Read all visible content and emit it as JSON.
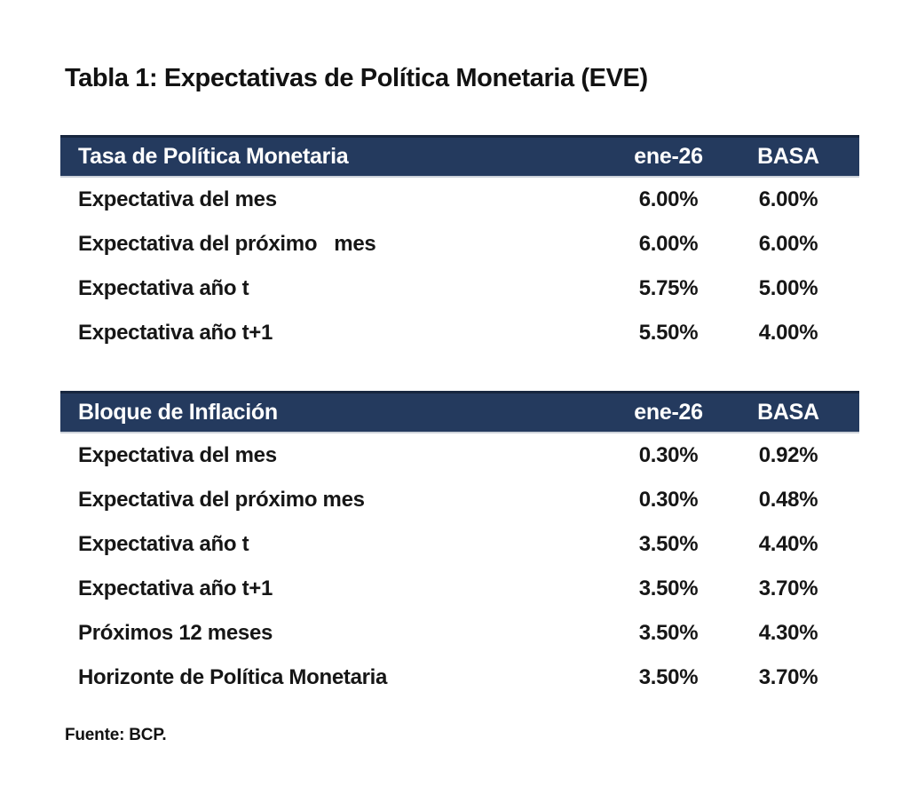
{
  "page": {
    "title": "Tabla 1: Expectativas de Política Monetaria (EVE)",
    "source_note": "Fuente: BCP."
  },
  "colors": {
    "header_bg": "#243A5E",
    "header_text": "#FFFFFF",
    "body_text": "#161616",
    "background": "#FFFFFF"
  },
  "tables": [
    {
      "header": {
        "label": "Tasa de Política Monetaria",
        "col1": "ene-26",
        "col2": "BASA"
      },
      "rows": [
        {
          "label": "Expectativa del mes",
          "col1": "6.00%",
          "col2": "6.00%"
        },
        {
          "label": "Expectativa del próximo   mes",
          "col1": "6.00%",
          "col2": "6.00%"
        },
        {
          "label": "Expectativa año t",
          "col1": "5.75%",
          "col2": "5.00%"
        },
        {
          "label": "Expectativa año t+1",
          "col1": "5.50%",
          "col2": "4.00%"
        }
      ]
    },
    {
      "header": {
        "label": "Bloque de Inflación",
        "col1": "ene-26",
        "col2": "BASA"
      },
      "rows": [
        {
          "label": "Expectativa del mes",
          "col1": "0.30%",
          "col2": "0.92%"
        },
        {
          "label": "Expectativa del próximo mes",
          "col1": "0.30%",
          "col2": "0.48%"
        },
        {
          "label": "Expectativa año t",
          "col1": "3.50%",
          "col2": "4.40%"
        },
        {
          "label": "Expectativa año t+1",
          "col1": "3.50%",
          "col2": "3.70%"
        },
        {
          "label": "Próximos 12 meses",
          "col1": "3.50%",
          "col2": "4.30%"
        },
        {
          "label": "Horizonte de Política Monetaria",
          "col1": "3.50%",
          "col2": "3.70%"
        }
      ]
    }
  ]
}
